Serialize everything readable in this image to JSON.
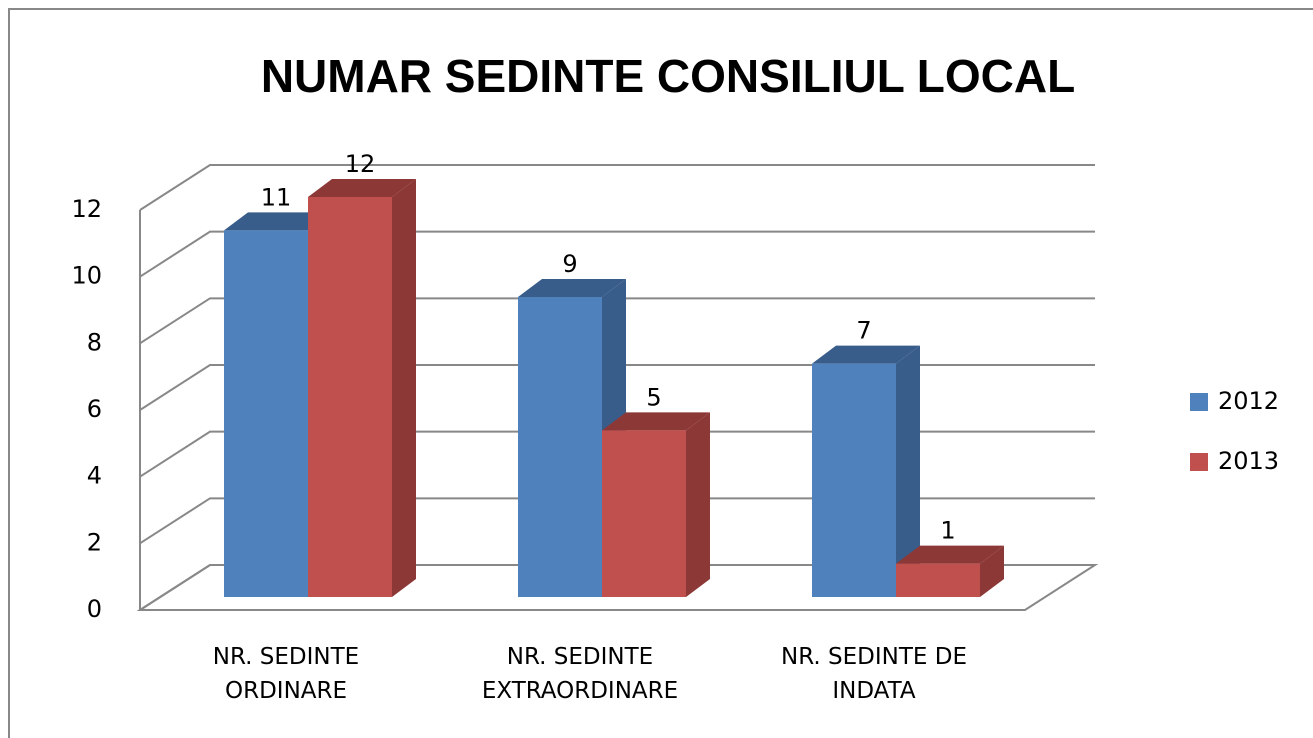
{
  "chart_data": {
    "type": "bar3d",
    "title": "NUMAR SEDINTE CONSILIUL LOCAL",
    "categories": [
      "NR. SEDINTE ORDINARE",
      "NR. SEDINTE EXTRAORDINARE",
      "NR. SEDINTE DE INDATA"
    ],
    "series": [
      {
        "name": "2012",
        "color": "#4f81bd",
        "side": "#385d8a",
        "values": [
          11,
          9,
          7
        ]
      },
      {
        "name": "2013",
        "color": "#c0504d",
        "side": "#8c3836",
        "values": [
          12,
          5,
          1
        ]
      }
    ],
    "ylim": [
      0,
      12
    ],
    "yticks": [
      0,
      2,
      4,
      6,
      8,
      10,
      12
    ],
    "grid": true,
    "legend": "right"
  }
}
